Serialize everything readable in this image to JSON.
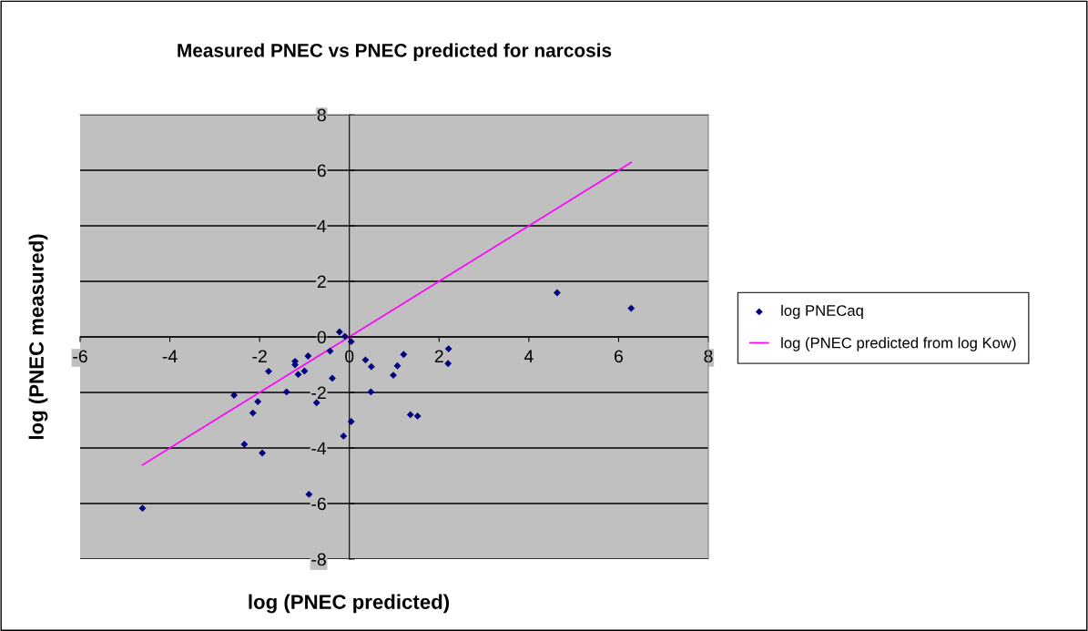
{
  "chart_data": {
    "type": "scatter",
    "title": "Measured PNEC vs PNEC predicted for narcosis",
    "xlabel": "log (PNEC predicted)",
    "ylabel": "log (PNEC measured)",
    "xlim": [
      -6,
      8
    ],
    "xticks": [
      -6,
      -4,
      -2,
      0,
      2,
      4,
      6,
      8
    ],
    "ylim": [
      -8,
      8
    ],
    "yticks": [
      -8,
      -6,
      -4,
      -2,
      0,
      2,
      4,
      6,
      8
    ],
    "grid": "y",
    "legend": "right",
    "marker": "diamond",
    "series": [
      {
        "name": "log PNECaq",
        "color": "#000080",
        "x": [
          -4.61,
          -2.57,
          -2.34,
          -2.15,
          -2.04,
          -1.94,
          -1.8,
          -1.4,
          -1.21,
          -1.21,
          -1.14,
          -1.0,
          -0.92,
          -0.22,
          -0.1,
          0.04,
          -0.43,
          -0.38,
          -0.73,
          0.04,
          -0.13,
          -0.9,
          0.36,
          0.49,
          0.48,
          0.98,
          1.07,
          1.21,
          1.36,
          1.52,
          2.21,
          2.2,
          4.63,
          6.28
        ],
        "values": [
          -6.17,
          -2.1,
          -3.87,
          -2.74,
          -2.33,
          -4.18,
          -1.24,
          -1.98,
          -0.88,
          -1.0,
          -1.35,
          -1.23,
          -0.69,
          0.18,
          0.02,
          -0.17,
          -0.51,
          -1.49,
          -2.37,
          -3.05,
          -3.57,
          -5.67,
          -0.83,
          -1.07,
          -1.98,
          -1.38,
          -1.04,
          -0.63,
          -2.8,
          -2.85,
          -0.43,
          -0.96,
          1.59,
          1.03
        ]
      },
      {
        "name": "log (PNEC predicted from log Kow)",
        "color": "#ff00ff",
        "type": "line",
        "marker": "none",
        "x": [
          -4.61,
          6.28
        ],
        "values": [
          -4.61,
          6.28
        ]
      }
    ]
  }
}
